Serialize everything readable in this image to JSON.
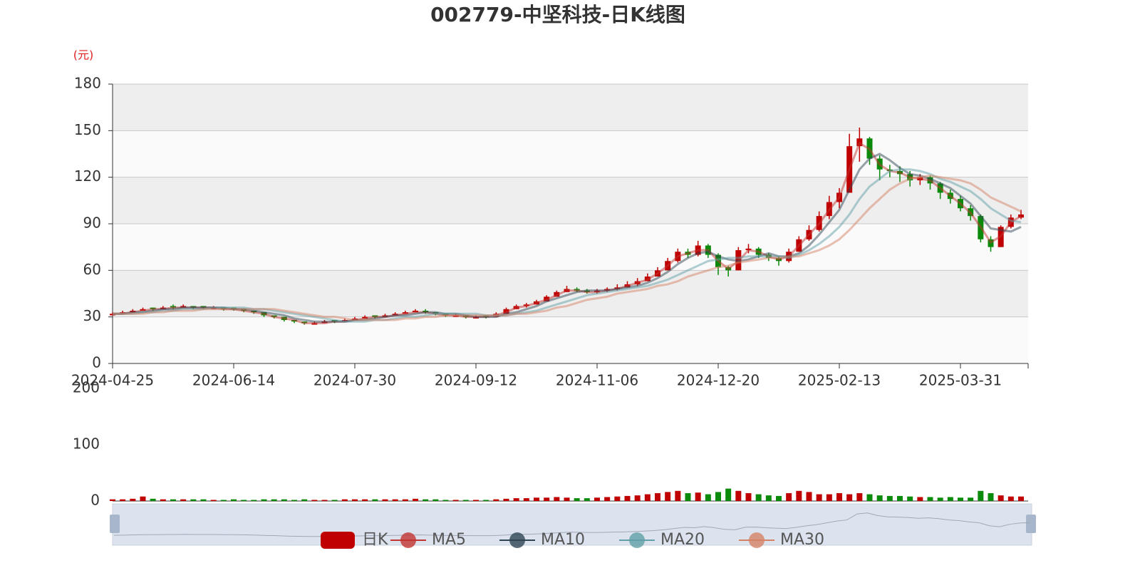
{
  "chart_data": {
    "type": "candlestick",
    "title": "002779-中坚科技-日K线图",
    "y_unit": "(元)",
    "candle_name": "日K",
    "up_color": "#c00000",
    "down_color": "#0a8a0a",
    "grid": true,
    "categories": [
      "2024-04-25",
      null,
      null,
      null,
      null,
      null,
      null,
      null,
      null,
      null,
      null,
      null,
      "2024-06-14",
      null,
      null,
      null,
      null,
      null,
      null,
      null,
      null,
      null,
      null,
      null,
      "2024-07-30",
      null,
      null,
      null,
      null,
      null,
      null,
      null,
      null,
      null,
      null,
      null,
      "2024-09-12",
      null,
      null,
      null,
      null,
      null,
      null,
      null,
      null,
      null,
      null,
      null,
      "2024-11-06",
      null,
      null,
      null,
      null,
      null,
      null,
      null,
      null,
      null,
      null,
      null,
      "2024-12-20",
      null,
      null,
      null,
      null,
      null,
      null,
      null,
      null,
      null,
      null,
      null,
      "2025-02-13",
      null,
      null,
      null,
      null,
      null,
      null,
      null,
      null,
      null,
      null,
      null,
      "2025-03-31",
      null,
      null,
      null,
      null,
      null,
      null
    ],
    "ohlc": [
      [
        31,
        32,
        31,
        33
      ],
      [
        32,
        33,
        32,
        34
      ],
      [
        33,
        34,
        33,
        35
      ],
      [
        34,
        35,
        34,
        36
      ],
      [
        36,
        35,
        34,
        36
      ],
      [
        35,
        36,
        35,
        37
      ],
      [
        37,
        36,
        35,
        38
      ],
      [
        36,
        37,
        36,
        38
      ],
      [
        37,
        36,
        35,
        37
      ],
      [
        37,
        36,
        35,
        37
      ],
      [
        35,
        36,
        35,
        37
      ],
      [
        36,
        35,
        34,
        36
      ],
      [
        36,
        35,
        34,
        36
      ],
      [
        35,
        34,
        33,
        35
      ],
      [
        34,
        33,
        32,
        34
      ],
      [
        33,
        31,
        30,
        33
      ],
      [
        31,
        30,
        29,
        31
      ],
      [
        30,
        28,
        27,
        30
      ],
      [
        28,
        27,
        26,
        28
      ],
      [
        27,
        26,
        25,
        27
      ],
      [
        25,
        26,
        25,
        27
      ],
      [
        26,
        27,
        26,
        28
      ],
      [
        28,
        27,
        26,
        28
      ],
      [
        27,
        28,
        27,
        29
      ],
      [
        28,
        29,
        28,
        30
      ],
      [
        29,
        30,
        29,
        31
      ],
      [
        31,
        30,
        29,
        31
      ],
      [
        30,
        31,
        30,
        32
      ],
      [
        31,
        32,
        31,
        33
      ],
      [
        32,
        33,
        32,
        34
      ],
      [
        33,
        34,
        33,
        35
      ],
      [
        34,
        33,
        32,
        35
      ],
      [
        33,
        32,
        31,
        33
      ],
      [
        32,
        31,
        30,
        32
      ],
      [
        30,
        31,
        30,
        32
      ],
      [
        31,
        30,
        29,
        31
      ],
      [
        29,
        30,
        29,
        31
      ],
      [
        31,
        30,
        29,
        31
      ],
      [
        30,
        32,
        30,
        33
      ],
      [
        32,
        35,
        32,
        36
      ],
      [
        35,
        37,
        35,
        38
      ],
      [
        37,
        38,
        36,
        39
      ],
      [
        38,
        40,
        38,
        41
      ],
      [
        40,
        43,
        40,
        44
      ],
      [
        43,
        46,
        43,
        47
      ],
      [
        46,
        48,
        46,
        50
      ],
      [
        48,
        47,
        46,
        49
      ],
      [
        47,
        46,
        45,
        48
      ],
      [
        46,
        47,
        45,
        48
      ],
      [
        47,
        48,
        46,
        49
      ],
      [
        48,
        49,
        47,
        51
      ],
      [
        49,
        51,
        49,
        53
      ],
      [
        51,
        53,
        50,
        55
      ],
      [
        53,
        56,
        53,
        58
      ],
      [
        56,
        60,
        56,
        62
      ],
      [
        60,
        66,
        60,
        68
      ],
      [
        66,
        72,
        65,
        74
      ],
      [
        72,
        70,
        68,
        74
      ],
      [
        70,
        76,
        69,
        79
      ],
      [
        76,
        70,
        68,
        77
      ],
      [
        70,
        62,
        57,
        71
      ],
      [
        62,
        60,
        56,
        63
      ],
      [
        60,
        73,
        60,
        75
      ],
      [
        73,
        74,
        71,
        77
      ],
      [
        74,
        70,
        68,
        75
      ],
      [
        70,
        68,
        66,
        71
      ],
      [
        68,
        66,
        63,
        69
      ],
      [
        66,
        72,
        65,
        74
      ],
      [
        72,
        80,
        72,
        82
      ],
      [
        80,
        86,
        79,
        89
      ],
      [
        86,
        95,
        85,
        98
      ],
      [
        95,
        104,
        93,
        108
      ],
      [
        104,
        110,
        100,
        113
      ],
      [
        110,
        140,
        110,
        148
      ],
      [
        140,
        145,
        130,
        152
      ],
      [
        145,
        132,
        128,
        146
      ],
      [
        132,
        125,
        118,
        134
      ],
      [
        125,
        124,
        120,
        128
      ],
      [
        124,
        122,
        117,
        127
      ],
      [
        122,
        118,
        114,
        124
      ],
      [
        118,
        120,
        115,
        122
      ],
      [
        120,
        116,
        112,
        121
      ],
      [
        116,
        110,
        106,
        117
      ],
      [
        110,
        106,
        103,
        112
      ],
      [
        106,
        100,
        98,
        108
      ],
      [
        100,
        95,
        92,
        102
      ],
      [
        95,
        80,
        78,
        96
      ],
      [
        80,
        75,
        72,
        82
      ],
      [
        75,
        88,
        75,
        89
      ],
      [
        88,
        94,
        87,
        96
      ],
      [
        94,
        96,
        93,
        99
      ]
    ],
    "ylim": [
      0,
      180
    ],
    "yticks": [
      0,
      30,
      60,
      90,
      120,
      150,
      180
    ],
    "series": [
      {
        "name": "MA5",
        "color": "#c23531",
        "values": [
          32,
          32,
          33,
          34,
          35,
          35,
          36,
          36,
          36,
          36,
          36,
          35,
          35,
          34,
          33,
          32,
          30,
          29,
          28,
          26,
          26,
          26,
          27,
          27,
          28,
          29,
          30,
          30,
          31,
          32,
          33,
          33,
          32,
          31,
          31,
          30,
          30,
          30,
          31,
          33,
          36,
          37,
          39,
          41,
          44,
          47,
          47,
          46,
          46,
          47,
          48,
          50,
          52,
          54,
          58,
          63,
          69,
          71,
          73,
          73,
          66,
          61,
          66,
          73,
          72,
          69,
          67,
          69,
          76,
          83,
          90,
          99,
          107,
          125,
          142,
          138,
          128,
          124,
          123,
          120,
          119,
          118,
          113,
          108,
          103,
          97,
          88,
          78,
          82,
          91,
          95
        ]
      },
      {
        "name": "MA10",
        "color": "#2f4554",
        "values": [
          32,
          32,
          33,
          33,
          34,
          35,
          35,
          36,
          36,
          36,
          36,
          36,
          35,
          35,
          34,
          33,
          32,
          31,
          29,
          28,
          27,
          27,
          27,
          27,
          28,
          28,
          29,
          30,
          31,
          31,
          32,
          33,
          33,
          32,
          32,
          31,
          30,
          30,
          30,
          32,
          33,
          35,
          37,
          40,
          42,
          44,
          46,
          47,
          47,
          47,
          48,
          49,
          50,
          52,
          55,
          59,
          64,
          68,
          71,
          72,
          69,
          67,
          66,
          67,
          69,
          71,
          69,
          69,
          71,
          76,
          83,
          91,
          99,
          112,
          125,
          132,
          135,
          131,
          126,
          122,
          121,
          119,
          116,
          113,
          108,
          103,
          95,
          87,
          86,
          85,
          88
        ]
      },
      {
        "name": "MA20",
        "color": "#61a0a8",
        "values": [
          32,
          32,
          32,
          33,
          33,
          34,
          34,
          35,
          35,
          35,
          36,
          36,
          36,
          36,
          35,
          35,
          34,
          33,
          32,
          31,
          30,
          29,
          28,
          27,
          27,
          27,
          28,
          28,
          29,
          30,
          30,
          31,
          32,
          32,
          32,
          32,
          32,
          31,
          31,
          31,
          32,
          33,
          34,
          36,
          38,
          40,
          42,
          44,
          45,
          46,
          47,
          48,
          49,
          50,
          52,
          54,
          57,
          60,
          63,
          66,
          67,
          68,
          68,
          69,
          69,
          69,
          69,
          68,
          70,
          73,
          77,
          82,
          88,
          96,
          106,
          114,
          119,
          124,
          125,
          125,
          124,
          122,
          119,
          117,
          114,
          111,
          106,
          100,
          96,
          92,
          91
        ]
      },
      {
        "name": "MA30",
        "color": "#d48265",
        "values": [
          32,
          32,
          32,
          32,
          33,
          33,
          34,
          34,
          34,
          35,
          35,
          35,
          35,
          35,
          35,
          35,
          35,
          34,
          33,
          32,
          31,
          30,
          30,
          29,
          28,
          28,
          28,
          28,
          28,
          29,
          29,
          30,
          30,
          31,
          31,
          31,
          31,
          31,
          31,
          31,
          32,
          32,
          33,
          34,
          36,
          37,
          39,
          41,
          42,
          43,
          45,
          46,
          47,
          48,
          50,
          51,
          53,
          56,
          58,
          60,
          62,
          63,
          65,
          66,
          67,
          68,
          68,
          69,
          69,
          71,
          73,
          76,
          80,
          86,
          93,
          100,
          106,
          112,
          116,
          119,
          120,
          121,
          120,
          119,
          118,
          116,
          112,
          107,
          104,
          101,
          98
        ]
      }
    ],
    "volume": {
      "values": [
        3,
        3,
        4,
        8,
        4,
        3,
        3,
        3,
        3,
        3,
        2,
        2,
        3,
        2,
        2,
        3,
        3,
        3,
        2,
        3,
        2,
        2,
        2,
        3,
        3,
        3,
        3,
        3,
        3,
        3,
        4,
        3,
        3,
        2,
        2,
        2,
        2,
        2,
        3,
        4,
        5,
        5,
        6,
        6,
        7,
        6,
        5,
        5,
        6,
        7,
        8,
        9,
        10,
        12,
        14,
        16,
        18,
        14,
        15,
        12,
        16,
        22,
        18,
        14,
        12,
        10,
        9,
        14,
        18,
        16,
        12,
        12,
        14,
        12,
        14,
        12,
        10,
        9,
        9,
        8,
        7,
        7,
        6,
        7,
        6,
        6,
        18,
        14,
        10,
        8,
        8
      ],
      "ylim": [
        0,
        200
      ],
      "yticks": [
        0,
        100,
        200
      ]
    }
  }
}
